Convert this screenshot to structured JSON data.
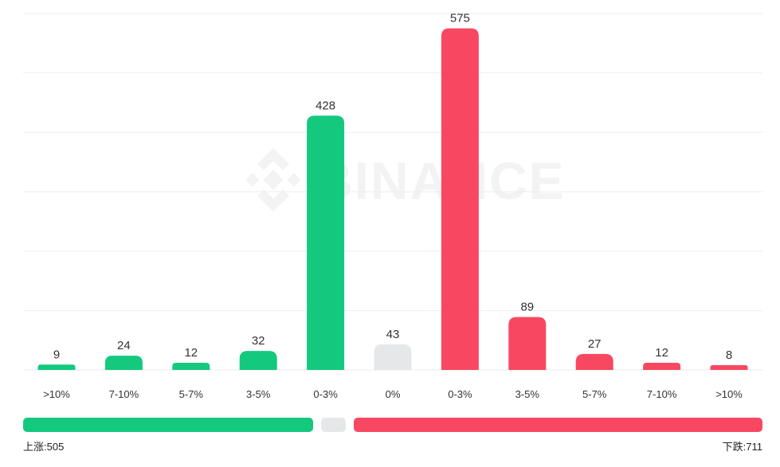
{
  "watermark": "BINANCE",
  "colors": {
    "up": "#14c97e",
    "flat": "#e6e7e9",
    "down": "#f84861"
  },
  "chart_data": {
    "type": "bar",
    "categories": [
      ">10%",
      "7-10%",
      "5-7%",
      "3-5%",
      "0-3%",
      "0%",
      "0-3%",
      "3-5%",
      "5-7%",
      "7-10%",
      ">10%"
    ],
    "values": [
      9,
      24,
      12,
      32,
      428,
      43,
      575,
      89,
      27,
      12,
      8
    ],
    "groups": [
      "up",
      "up",
      "up",
      "up",
      "up",
      "flat",
      "down",
      "down",
      "down",
      "down",
      "down"
    ],
    "ylim": [
      0,
      600
    ],
    "grid": true,
    "summary_bar": {
      "up": 505,
      "flat": 43,
      "down": 711
    }
  },
  "summary": {
    "up_label": "上涨:505",
    "down_label": "下跌:711"
  }
}
